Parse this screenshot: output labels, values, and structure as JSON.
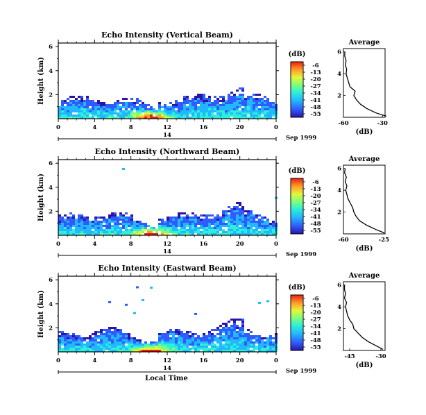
{
  "chart_data": [
    {
      "type": "heatmap",
      "title": "Echo Intensity (Vertical Beam)",
      "ylabel": "Height (km)",
      "xlabel": "",
      "x_ticks": [
        "0",
        "4",
        "8",
        "12",
        "16",
        "20",
        "0"
      ],
      "y_ticks": [
        "6",
        "4",
        "2"
      ],
      "date_label": "14",
      "date_suffix": "Sep 1999",
      "xlim": [
        0,
        24
      ],
      "ylim": [
        0,
        6.3
      ],
      "colorbar": {
        "unit": "(dB)",
        "ticks": [
          "-6",
          "-13",
          "-20",
          "-27",
          "-34",
          "-41",
          "-48",
          "-55"
        ]
      },
      "profile": {
        "title": "Average",
        "xlabel": "(dB)",
        "x_ticks": [
          "-60",
          "-30"
        ],
        "y_ticks": [
          "6",
          "4",
          "2"
        ],
        "xlim": [
          -60,
          -28
        ],
        "points": [
          [
            -27,
            0.1
          ],
          [
            -35,
            0.4
          ],
          [
            -42,
            0.8
          ],
          [
            -47,
            1.2
          ],
          [
            -50,
            1.6
          ],
          [
            -52,
            2.0
          ],
          [
            -51,
            2.4
          ],
          [
            -55,
            2.8
          ],
          [
            -56,
            3.2
          ],
          [
            -57,
            3.6
          ],
          [
            -58,
            4.0
          ],
          [
            -57.5,
            4.4
          ],
          [
            -58.5,
            4.8
          ],
          [
            -58,
            5.2
          ],
          [
            -59,
            5.6
          ],
          [
            -59,
            6.0
          ]
        ]
      }
    },
    {
      "type": "heatmap",
      "title": "Echo Intensity (Northward Beam)",
      "ylabel": "Height (km)",
      "xlabel": "",
      "x_ticks": [
        "0",
        "4",
        "8",
        "12",
        "16",
        "20",
        "0"
      ],
      "y_ticks": [
        "6",
        "4",
        "2"
      ],
      "date_label": "14",
      "date_suffix": "Sep 1999",
      "xlim": [
        0,
        24
      ],
      "ylim": [
        0,
        6.3
      ],
      "colorbar": {
        "unit": "(dB)",
        "ticks": [
          "-6",
          "-13",
          "-20",
          "-27",
          "-34",
          "-41",
          "-48",
          "-55"
        ]
      },
      "profile": {
        "title": "Average",
        "xlabel": "(dB)",
        "x_ticks": [
          "-60",
          "-25"
        ],
        "y_ticks": [
          "6",
          "4",
          "2"
        ],
        "xlim": [
          -60,
          -24
        ],
        "points": [
          [
            -25,
            0.1
          ],
          [
            -32,
            0.4
          ],
          [
            -40,
            0.8
          ],
          [
            -46,
            1.2
          ],
          [
            -49,
            1.6
          ],
          [
            -51,
            2.0
          ],
          [
            -52,
            2.4
          ],
          [
            -54,
            2.8
          ],
          [
            -56,
            3.2
          ],
          [
            -57,
            3.6
          ],
          [
            -58,
            4.0
          ],
          [
            -57,
            4.4
          ],
          [
            -58.5,
            4.8
          ],
          [
            -57.5,
            5.2
          ],
          [
            -59,
            5.6
          ],
          [
            -58.5,
            6.0
          ]
        ]
      }
    },
    {
      "type": "heatmap",
      "title": "Echo Intensity (Eastward Beam)",
      "ylabel": "Height (km)",
      "xlabel": "Local Time",
      "x_ticks": [
        "0",
        "4",
        "8",
        "12",
        "16",
        "20",
        "0"
      ],
      "y_ticks": [
        "6",
        "4",
        "2"
      ],
      "date_label": "14",
      "date_suffix": "Sep 1999",
      "xlim": [
        0,
        24
      ],
      "ylim": [
        0,
        6.3
      ],
      "colorbar": {
        "unit": "(dB)",
        "ticks": [
          "-6",
          "-13",
          "-20",
          "-27",
          "-34",
          "-41",
          "-48",
          "-55"
        ]
      },
      "profile": {
        "title": "Average",
        "xlabel": "(dB)",
        "x_ticks": [
          "-45",
          "-30"
        ],
        "y_ticks": [
          "6",
          "4",
          "2"
        ],
        "xlim": [
          -48,
          -28
        ],
        "points": [
          [
            -29,
            0.1
          ],
          [
            -32,
            0.4
          ],
          [
            -36,
            0.8
          ],
          [
            -39,
            1.2
          ],
          [
            -41,
            1.6
          ],
          [
            -43,
            2.0
          ],
          [
            -43.5,
            2.4
          ],
          [
            -45,
            2.8
          ],
          [
            -46,
            3.2
          ],
          [
            -46.5,
            3.6
          ],
          [
            -47,
            4.0
          ],
          [
            -46.5,
            4.4
          ],
          [
            -47.5,
            4.8
          ],
          [
            -47,
            5.2
          ],
          [
            -47.5,
            5.6
          ],
          [
            -47.5,
            6.0
          ]
        ]
      }
    }
  ]
}
